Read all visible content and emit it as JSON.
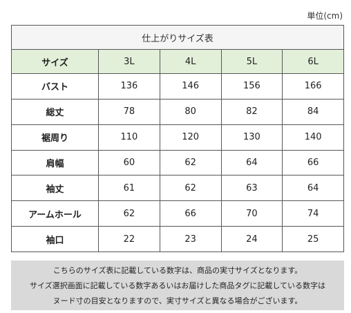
{
  "unit_label": "単位(cm)",
  "table": {
    "title": "仕上がりサイズ表",
    "header_label": "サイズ",
    "sizes": [
      "3L",
      "4L",
      "5L",
      "6L"
    ],
    "rows": [
      {
        "label": "バスト",
        "values": [
          "136",
          "146",
          "156",
          "166"
        ]
      },
      {
        "label": "総丈",
        "values": [
          "78",
          "80",
          "82",
          "84"
        ]
      },
      {
        "label": "裾周り",
        "values": [
          "110",
          "120",
          "130",
          "140"
        ]
      },
      {
        "label": "肩幅",
        "values": [
          "60",
          "62",
          "64",
          "66"
        ]
      },
      {
        "label": "袖丈",
        "values": [
          "61",
          "62",
          "63",
          "64"
        ]
      },
      {
        "label": "アームホール",
        "values": [
          "62",
          "66",
          "70",
          "74"
        ]
      },
      {
        "label": "袖口",
        "values": [
          "22",
          "23",
          "24",
          "25"
        ]
      }
    ]
  },
  "note": {
    "lines": [
      "こちらのサイズ表に記載している数字は、商品の実寸サイズとなります。",
      "サイズ選択画面に記載している数字あるいはお届けした商品タグに記載している数字は",
      "ヌード寸の目安となりますので、実寸サイズと異なる場合がございます。"
    ]
  }
}
